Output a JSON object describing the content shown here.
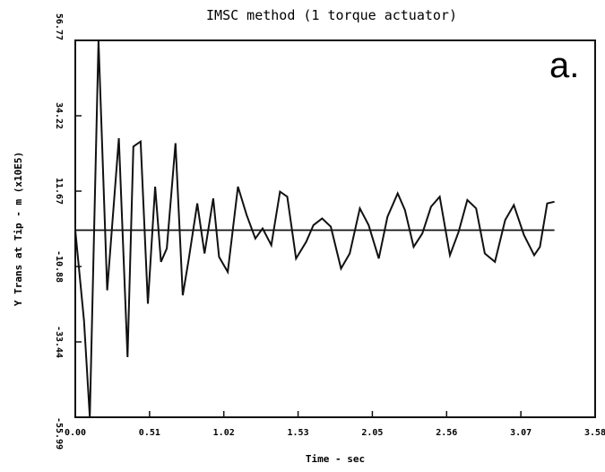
{
  "chart_data": {
    "type": "line",
    "title": "IMSC method (1 torque actuator)",
    "panel_label": "a.",
    "xlabel": "Time - sec",
    "ylabel": "Y Trans at Tip - m (x10E5)",
    "x_tick_labels": [
      "0.00",
      "0.51",
      "1.02",
      "1.53",
      "2.05",
      "2.56",
      "3.07",
      "3.58"
    ],
    "y_tick_labels": [
      "56.77",
      "34.22",
      "11.67",
      "-10.88",
      "-33.44",
      "-55.99"
    ],
    "xlim": [
      0.0,
      3.58
    ],
    "ylim": [
      -55.99,
      56.77
    ],
    "grid": false,
    "series": [
      {
        "values": [
          [
            0.0,
            0.0
          ],
          [
            0.06,
            -27.0
          ],
          [
            0.1,
            -55.99
          ],
          [
            0.16,
            59.0
          ],
          [
            0.22,
            -18.0
          ],
          [
            0.3,
            27.5
          ],
          [
            0.36,
            -38.0
          ],
          [
            0.4,
            25.0
          ],
          [
            0.45,
            26.5
          ],
          [
            0.5,
            -22.0
          ],
          [
            0.55,
            13.0
          ],
          [
            0.59,
            -9.5
          ],
          [
            0.63,
            -5.5
          ],
          [
            0.69,
            26.0
          ],
          [
            0.74,
            -19.5
          ],
          [
            0.78,
            -9.0
          ],
          [
            0.84,
            8.0
          ],
          [
            0.89,
            -7.0
          ],
          [
            0.95,
            9.5
          ],
          [
            0.99,
            -8.0
          ],
          [
            1.05,
            -12.5
          ],
          [
            1.12,
            13.0
          ],
          [
            1.18,
            4.5
          ],
          [
            1.24,
            -2.5
          ],
          [
            1.29,
            0.5
          ],
          [
            1.35,
            -4.5
          ],
          [
            1.41,
            11.5
          ],
          [
            1.46,
            10.0
          ],
          [
            1.52,
            -8.5
          ],
          [
            1.59,
            -3.5
          ],
          [
            1.64,
            1.5
          ],
          [
            1.7,
            3.5
          ],
          [
            1.76,
            1.0
          ],
          [
            1.83,
            -11.5
          ],
          [
            1.89,
            -7.0
          ],
          [
            1.96,
            6.5
          ],
          [
            2.02,
            1.5
          ],
          [
            2.09,
            -8.5
          ],
          [
            2.15,
            4.0
          ],
          [
            2.22,
            11.0
          ],
          [
            2.27,
            6.0
          ],
          [
            2.33,
            -5.0
          ],
          [
            2.39,
            -1.0
          ],
          [
            2.45,
            7.0
          ],
          [
            2.51,
            10.0
          ],
          [
            2.58,
            -7.5
          ],
          [
            2.64,
            -0.5
          ],
          [
            2.7,
            9.0
          ],
          [
            2.76,
            6.5
          ],
          [
            2.82,
            -7.0
          ],
          [
            2.89,
            -9.5
          ],
          [
            2.96,
            3.0
          ],
          [
            3.02,
            7.5
          ],
          [
            3.09,
            -1.5
          ],
          [
            3.16,
            -7.5
          ],
          [
            3.2,
            -5.0
          ],
          [
            3.25,
            8.0
          ],
          [
            3.3,
            8.5
          ]
        ]
      },
      {
        "values": [
          [
            0.0,
            0.0
          ],
          [
            3.3,
            0.0
          ]
        ]
      }
    ]
  }
}
